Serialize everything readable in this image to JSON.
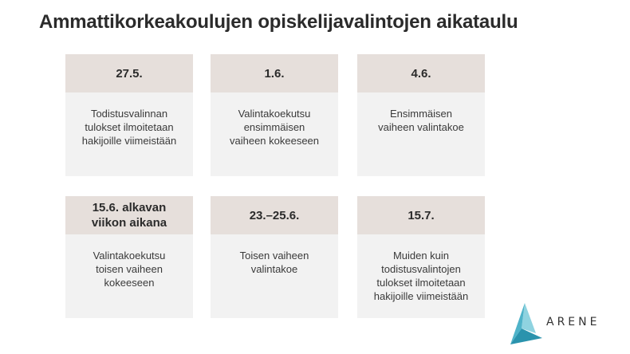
{
  "slide": {
    "title": "Ammattikorkeakoulujen opiskelijavalintojen aikataulu"
  },
  "cards": [
    {
      "date": "27.5.",
      "text": "Todistusvalinnan\ntulokset ilmoitetaan\nhakijoille viimeistään"
    },
    {
      "date": "1.6.",
      "text": "Valintakoekutsu\nensimmäisen\nvaiheen kokeeseen"
    },
    {
      "date": "4.6.",
      "text": "Ensimmäisen\nvaiheen valintakoe"
    },
    {
      "date": "15.6. alkavan\nviikon aikana",
      "text": "Valintakoekutsu\ntoisen vaiheen\nkokeeseen"
    },
    {
      "date": "23.–25.6.",
      "text": "Toisen vaiheen\nvalintakoe"
    },
    {
      "date": "15.7.",
      "text": "Muiden kuin\ntodistusvalintojen\ntulokset ilmoitetaan\nhakijoille viimeistään"
    }
  ],
  "logo": {
    "text": "ARENE",
    "icon": "arene-triangle-logo",
    "colors": {
      "light": "#8fd3e0",
      "mid": "#4fb3c9",
      "dark": "#2a93ad"
    }
  },
  "colors": {
    "card_header": "#e6dfdb",
    "card_body": "#f2f2f2",
    "text": "#2b2b2b"
  }
}
